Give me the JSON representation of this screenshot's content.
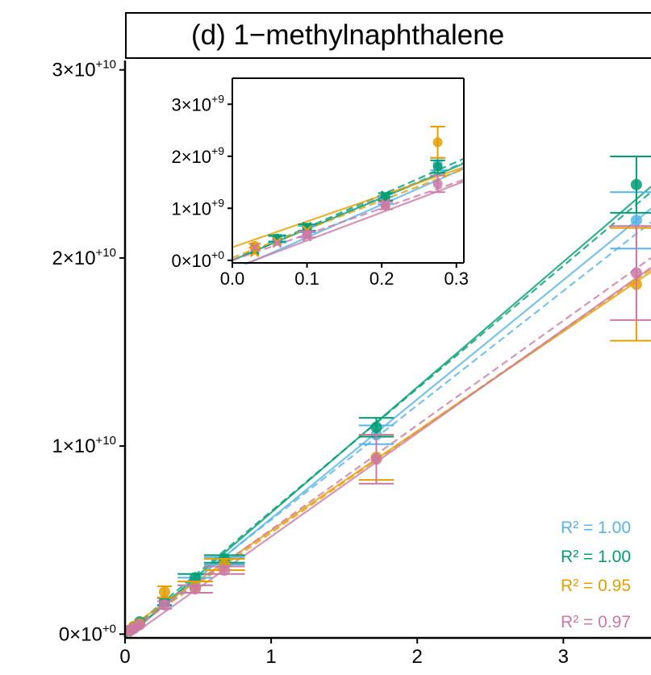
{
  "title": "(d) 1−methylnaphthalene",
  "colors": {
    "blue": "#56b4e9",
    "green": "#009e73",
    "orange": "#e69f00",
    "pink": "#cc79a7",
    "axis": "#000000"
  },
  "chart_data": [
    {
      "type": "scatter",
      "title": "(d) 1−methylnaphthalene",
      "xlabel": "",
      "ylabel": "",
      "xlim": [
        0,
        3.6
      ],
      "ylim": [
        -0.02,
        3.05
      ],
      "x_ticks": [
        0,
        1,
        2,
        3
      ],
      "x_tick_labels": [
        "0",
        "1",
        "2",
        "3"
      ],
      "y_ticks": [
        0,
        1,
        2,
        3
      ],
      "y_tick_mantissa": [
        "0",
        "1",
        "2",
        "3"
      ],
      "y_tick_exponent": [
        "+0",
        "+10",
        "+10",
        "+10"
      ],
      "y_unit": 10000000000.0,
      "grid": false,
      "series": [
        {
          "color": "blue",
          "points": [
            {
              "x": 0.03,
              "y": 0.02,
              "err": 0.005,
              "xerr": 0.015
            },
            {
              "x": 0.06,
              "y": 0.035,
              "err": 0.008,
              "xerr": 0.02
            },
            {
              "x": 0.1,
              "y": 0.06,
              "err": 0.01,
              "xerr": 0.03
            },
            {
              "x": 0.27,
              "y": 0.17,
              "err": 0.02,
              "xerr": 0.05
            },
            {
              "x": 0.48,
              "y": 0.28,
              "err": 0.02,
              "xerr": 0.12
            },
            {
              "x": 0.68,
              "y": 0.39,
              "err": 0.02,
              "xerr": 0.14
            },
            {
              "x": 1.72,
              "y": 1.06,
              "err": 0.05,
              "xerr": 0.12
            },
            {
              "x": 3.5,
              "y": 2.2,
              "err": 0.15,
              "xerr": 0.18
            }
          ],
          "fit_solid": {
            "x0": 0.03,
            "x1": 3.6,
            "slope": 0.6338,
            "intercept": -0.019
          },
          "fit_dashed": {
            "x0": 0,
            "x1": 3.6,
            "slope": 0.6083,
            "intercept": 0
          }
        },
        {
          "color": "green",
          "points": [
            {
              "x": 0.03,
              "y": 0.02,
              "err": 0.005,
              "xerr": 0.015
            },
            {
              "x": 0.06,
              "y": 0.04,
              "err": 0.008,
              "xerr": 0.02
            },
            {
              "x": 0.1,
              "y": 0.065,
              "err": 0.01,
              "xerr": 0.03
            },
            {
              "x": 0.27,
              "y": 0.175,
              "err": 0.02,
              "xerr": 0.05
            },
            {
              "x": 0.48,
              "y": 0.3,
              "err": 0.02,
              "xerr": 0.12
            },
            {
              "x": 0.68,
              "y": 0.4,
              "err": 0.02,
              "xerr": 0.14
            },
            {
              "x": 1.72,
              "y": 1.1,
              "err": 0.05,
              "xerr": 0.12
            },
            {
              "x": 3.5,
              "y": 2.39,
              "err": 0.15,
              "xerr": 0.18
            }
          ],
          "fit_solid": {
            "x0": 0,
            "x1": 3.6,
            "slope": 0.6667,
            "intercept": -0.0208
          },
          "fit_dashed": {
            "x0": 0,
            "x1": 3.6,
            "slope": 0.6528,
            "intercept": 0
          }
        },
        {
          "color": "orange",
          "points": [
            {
              "x": 0.03,
              "y": 0.02,
              "err": 0.005,
              "xerr": 0.015
            },
            {
              "x": 0.06,
              "y": 0.04,
              "err": 0.008,
              "xerr": 0.02
            },
            {
              "x": 0.1,
              "y": 0.055,
              "err": 0.01,
              "xerr": 0.03
            },
            {
              "x": 0.27,
              "y": 0.225,
              "err": 0.03,
              "xerr": 0.05
            },
            {
              "x": 0.48,
              "y": 0.25,
              "err": 0.03,
              "xerr": 0.12
            },
            {
              "x": 0.68,
              "y": 0.37,
              "err": 0.03,
              "xerr": 0.14
            },
            {
              "x": 1.72,
              "y": 0.94,
              "err": 0.12,
              "xerr": 0.12
            },
            {
              "x": 3.5,
              "y": 1.86,
              "err": 0.3,
              "xerr": 0.18
            }
          ],
          "fit_solid": {
            "x0": 0,
            "x1": 3.6,
            "slope": 0.5294,
            "intercept": 0.0208
          },
          "fit_dashed": {
            "x0": 0,
            "x1": 3.6,
            "slope": 0.5389,
            "intercept": 0
          }
        },
        {
          "color": "pink",
          "points": [
            {
              "x": 0.03,
              "y": 0.02,
              "err": 0.005,
              "xerr": 0.015
            },
            {
              "x": 0.06,
              "y": 0.03,
              "err": 0.008,
              "xerr": 0.02
            },
            {
              "x": 0.1,
              "y": 0.05,
              "err": 0.01,
              "xerr": 0.03
            },
            {
              "x": 0.27,
              "y": 0.155,
              "err": 0.02,
              "xerr": 0.05
            },
            {
              "x": 0.48,
              "y": 0.24,
              "err": 0.02,
              "xerr": 0.12
            },
            {
              "x": 0.68,
              "y": 0.34,
              "err": 0.02,
              "xerr": 0.14
            },
            {
              "x": 1.72,
              "y": 0.93,
              "err": 0.13,
              "xerr": 0.12
            },
            {
              "x": 3.5,
              "y": 1.92,
              "err": 0.25,
              "xerr": 0.18
            }
          ],
          "fit_solid": {
            "x0": 0.03,
            "x1": 3.6,
            "slope": 0.55,
            "intercept": -0.0312
          },
          "fit_dashed": {
            "x0": 0,
            "x1": 3.6,
            "slope": 0.5556,
            "intercept": 0
          }
        }
      ],
      "annotations": [
        {
          "text": "R² = 1.00",
          "color": "blue"
        },
        {
          "text": "R² = 1.00",
          "color": "green"
        },
        {
          "text": "R² = 0.95",
          "color": "orange"
        },
        {
          "text": "R² = 0.97",
          "color": "pink"
        }
      ]
    },
    {
      "type": "scatter",
      "title": "",
      "xlabel": "",
      "ylabel": "",
      "xlim": [
        0,
        0.31
      ],
      "ylim": [
        -0.05,
        3.5
      ],
      "x_ticks": [
        0,
        0.1,
        0.2,
        0.3
      ],
      "x_tick_labels": [
        "0.0",
        "0.1",
        "0.2",
        "0.3"
      ],
      "y_ticks": [
        0,
        1,
        2,
        3
      ],
      "y_tick_mantissa": [
        "0",
        "1",
        "2",
        "3"
      ],
      "y_tick_exponent": [
        "+0",
        "+9",
        "+9",
        "+9"
      ],
      "y_unit": 1000000000.0,
      "grid": false,
      "series": [
        {
          "color": "blue",
          "circles": [
            {
              "x": 0.06,
              "y": 0.4,
              "err": 0.06,
              "xerr": 0.012
            },
            {
              "x": 0.1,
              "y": 0.6,
              "err": 0.06,
              "xerr": 0.012
            },
            {
              "x": 0.205,
              "y": 1.15,
              "err": 0.07,
              "xerr": 0.01
            },
            {
              "x": 0.275,
              "y": 1.85,
              "err": 0.12,
              "xerr": 0.01
            }
          ],
          "crosses": [
            {
              "x": 0.03,
              "y": 0.18
            },
            {
              "x": 0.06,
              "y": 0.4
            },
            {
              "x": 0.1,
              "y": 0.55
            },
            {
              "x": 0.205,
              "y": 1.15
            }
          ],
          "fit_solid": {
            "x0": 0,
            "x1": 0.31,
            "slope": 6.3,
            "intercept": -0.19
          },
          "fit_dashed": {
            "x0": 0,
            "x1": 0.31,
            "slope": 6.08,
            "intercept": 0
          }
        },
        {
          "color": "green",
          "circles": [
            {
              "x": 0.06,
              "y": 0.42,
              "err": 0.06,
              "xerr": 0.012
            },
            {
              "x": 0.1,
              "y": 0.63,
              "err": 0.06,
              "xerr": 0.012
            },
            {
              "x": 0.205,
              "y": 1.22,
              "err": 0.07,
              "xerr": 0.01
            },
            {
              "x": 0.275,
              "y": 1.8,
              "err": 0.12,
              "xerr": 0.01
            }
          ],
          "crosses": [
            {
              "x": 0.03,
              "y": 0.2
            },
            {
              "x": 0.06,
              "y": 0.42
            },
            {
              "x": 0.1,
              "y": 0.65
            },
            {
              "x": 0.205,
              "y": 1.25
            }
          ],
          "fit_solid": {
            "x0": 0,
            "x1": 0.31,
            "slope": 6.0,
            "intercept": 0.0
          },
          "fit_dashed": {
            "x0": 0,
            "x1": 0.31,
            "slope": 6.3,
            "intercept": 0
          }
        },
        {
          "color": "orange",
          "circles": [
            {
              "x": 0.03,
              "y": 0.28,
              "err": 0.04,
              "xerr": 0.008
            },
            {
              "x": 0.275,
              "y": 2.27,
              "err": 0.3,
              "xerr": 0.01
            }
          ],
          "crosses": [
            {
              "x": 0.03,
              "y": 0.15
            },
            {
              "x": 0.06,
              "y": 0.36
            },
            {
              "x": 0.1,
              "y": 0.58
            },
            {
              "x": 0.205,
              "y": 1.08
            }
          ],
          "fit_solid": {
            "x0": 0,
            "x1": 0.31,
            "slope": 4.97,
            "intercept": 0.25
          },
          "fit_dashed": {
            "x0": 0,
            "x1": 0.31,
            "slope": 5.5,
            "intercept": 0.05
          }
        },
        {
          "color": "pink",
          "circles": [
            {
              "x": 0.1,
              "y": 0.5,
              "err": 0.06,
              "xerr": 0.012
            },
            {
              "x": 0.205,
              "y": 1.05,
              "err": 0.07,
              "xerr": 0.01
            },
            {
              "x": 0.275,
              "y": 1.47,
              "err": 0.16,
              "xerr": 0.01
            }
          ],
          "crosses": [
            {
              "x": 0.03,
              "y": 0.25
            },
            {
              "x": 0.06,
              "y": 0.33
            },
            {
              "x": 0.1,
              "y": 0.45
            },
            {
              "x": 0.205,
              "y": 1.1
            }
          ],
          "fit_solid": {
            "x0": 0.02,
            "x1": 0.31,
            "slope": 5.4,
            "intercept": -0.16
          },
          "fit_dashed": {
            "x0": 0,
            "x1": 0.31,
            "slope": 5.0,
            "intercept": 0
          }
        }
      ]
    }
  ]
}
